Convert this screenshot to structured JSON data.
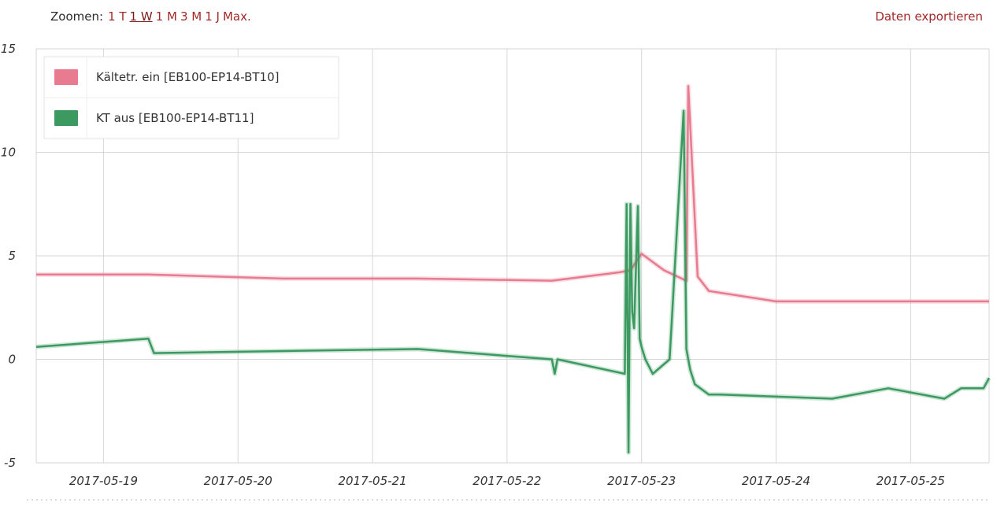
{
  "toolbar": {
    "zoom_label": "Zoomen:",
    "zoom_options": [
      "1 T",
      "1 W",
      "1 M",
      "3 M",
      "1 J",
      "Max."
    ],
    "zoom_active": "1 W",
    "export_label": "Daten exportieren"
  },
  "chart_data": {
    "type": "line",
    "ylim": [
      -5,
      15
    ],
    "yticks": [
      "-5",
      "0",
      "5",
      "10",
      "15"
    ],
    "xlim": [
      "2017-05-18 12:00",
      "2017-05-25 14:00"
    ],
    "xticks": [
      "2017-05-19",
      "2017-05-20",
      "2017-05-21",
      "2017-05-22",
      "2017-05-23",
      "2017-05-24",
      "2017-05-25"
    ],
    "grid": true,
    "legend_position": "top-left",
    "series": [
      {
        "name": "Kältetr. ein [EB100-EP14-BT10]",
        "color": "#e87b8f",
        "x": [
          "2017-05-18 12:00",
          "2017-05-19 08:00",
          "2017-05-20 08:00",
          "2017-05-21 08:00",
          "2017-05-22 08:00",
          "2017-05-22 20:00",
          "2017-05-22 22:00",
          "2017-05-23 00:00",
          "2017-05-23 04:00",
          "2017-05-23 08:00",
          "2017-05-23 08:20",
          "2017-05-23 10:00",
          "2017-05-23 12:00",
          "2017-05-24 00:00",
          "2017-05-25 14:00"
        ],
        "values": [
          4.1,
          4.1,
          3.9,
          3.9,
          3.8,
          4.2,
          4.3,
          5.1,
          4.3,
          3.8,
          13.2,
          4.0,
          3.3,
          2.8,
          2.8
        ]
      },
      {
        "name": "KT aus [EB100-EP14-BT11]",
        "color": "#3c9a61",
        "x": [
          "2017-05-18 12:00",
          "2017-05-19 08:00",
          "2017-05-19 09:00",
          "2017-05-20 08:00",
          "2017-05-21 08:00",
          "2017-05-22 08:00",
          "2017-05-22 08:30",
          "2017-05-22 09:00",
          "2017-05-22 21:00",
          "2017-05-22 21:20",
          "2017-05-22 21:40",
          "2017-05-22 22:00",
          "2017-05-22 22:20",
          "2017-05-22 22:40",
          "2017-05-22 23:20",
          "2017-05-22 23:40",
          "2017-05-23 00:00",
          "2017-05-23 00:20",
          "2017-05-23 00:40",
          "2017-05-23 02:00",
          "2017-05-23 05:00",
          "2017-05-23 07:30",
          "2017-05-23 08:00",
          "2017-05-23 08:20",
          "2017-05-23 08:40",
          "2017-05-23 09:30",
          "2017-05-23 12:00",
          "2017-05-23 14:00",
          "2017-05-24 10:00",
          "2017-05-24 20:00",
          "2017-05-25 06:00",
          "2017-05-25 09:00",
          "2017-05-25 13:00",
          "2017-05-25 14:00"
        ],
        "values": [
          0.6,
          1.0,
          0.3,
          0.4,
          0.5,
          0.0,
          -0.7,
          0.0,
          -0.7,
          7.5,
          -4.5,
          7.5,
          2.3,
          1.5,
          7.4,
          1.0,
          0.6,
          0.3,
          0.0,
          -0.7,
          0.0,
          12.0,
          0.5,
          0.0,
          -0.5,
          -1.2,
          -1.7,
          -1.7,
          -1.9,
          -1.4,
          -1.9,
          -1.4,
          -1.4,
          -0.9
        ]
      }
    ]
  }
}
